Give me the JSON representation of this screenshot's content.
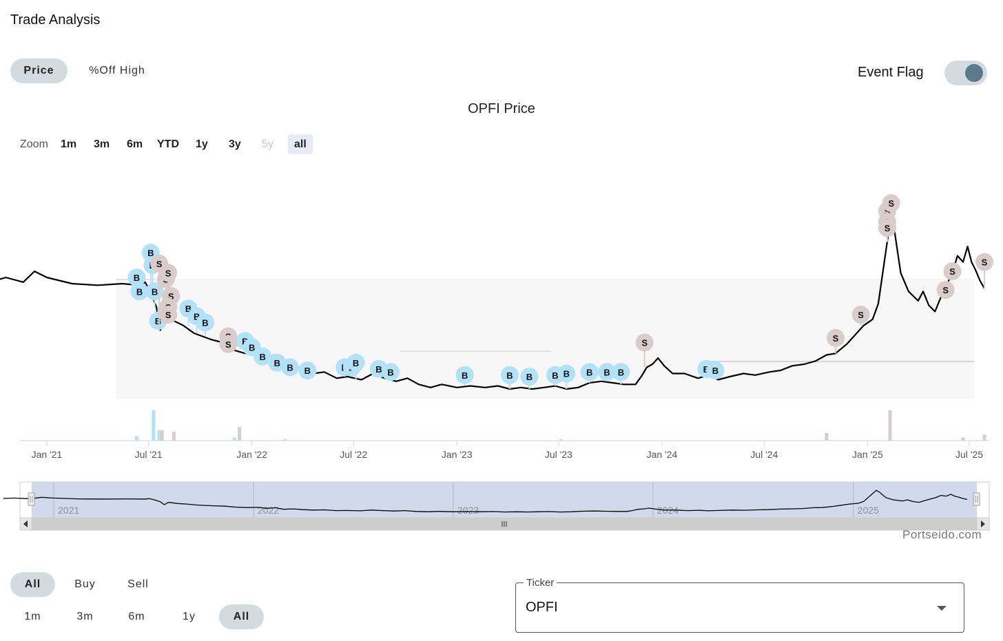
{
  "page": {
    "title": "Trade Analysis"
  },
  "view_tabs": [
    {
      "label": "Price",
      "active": true
    },
    {
      "label": "%Off High",
      "active": false
    }
  ],
  "event_flag": {
    "label": "Event Flag",
    "enabled": true
  },
  "chart_title": "OPFI Price",
  "zoom": {
    "label": "Zoom",
    "options": [
      {
        "label": "1m",
        "enabled": true,
        "selected": false
      },
      {
        "label": "3m",
        "enabled": true,
        "selected": false
      },
      {
        "label": "6m",
        "enabled": true,
        "selected": false
      },
      {
        "label": "YTD",
        "enabled": true,
        "selected": false
      },
      {
        "label": "1y",
        "enabled": true,
        "selected": false
      },
      {
        "label": "3y",
        "enabled": true,
        "selected": false
      },
      {
        "label": "5y",
        "enabled": false,
        "selected": false
      },
      {
        "label": "all",
        "enabled": true,
        "selected": true
      }
    ]
  },
  "colors": {
    "price_line": "#000000",
    "buy_flag": "#b3e1f7",
    "sell_flag": "#d9ccca",
    "navigator_fill": "#ccd6eb",
    "axis": "#ccd6eb"
  },
  "chart_data": {
    "type": "line",
    "x_axis_labels": [
      "Jan '21",
      "Jul '21",
      "Jan '22",
      "Jul '22",
      "Jan '23",
      "Jul '23",
      "Jan '24",
      "Jul '24",
      "Jan '25",
      "Jul '25"
    ],
    "price_series": [
      [
        "2020-10-01",
        0.5
      ],
      [
        "2020-10-20",
        0.52
      ],
      [
        "2020-11-20",
        0.49
      ],
      [
        "2020-12-10",
        0.56
      ],
      [
        "2021-01-01",
        0.52
      ],
      [
        "2021-02-15",
        0.48
      ],
      [
        "2021-04-01",
        0.47
      ],
      [
        "2021-05-15",
        0.48
      ],
      [
        "2021-06-15",
        0.47
      ],
      [
        "2021-06-25",
        0.49
      ],
      [
        "2021-07-05",
        0.42
      ],
      [
        "2021-07-15",
        0.33
      ],
      [
        "2021-07-22",
        0.18
      ],
      [
        "2021-07-30",
        0.3
      ],
      [
        "2021-08-15",
        0.24
      ],
      [
        "2021-09-01",
        0.21
      ],
      [
        "2021-09-20",
        0.16
      ],
      [
        "2021-10-05",
        0.14
      ],
      [
        "2021-10-20",
        0.12
      ],
      [
        "2021-11-10",
        0.1
      ],
      [
        "2021-12-01",
        0.05
      ],
      [
        "2021-12-20",
        0.03
      ],
      [
        "2022-01-10",
        0.04
      ],
      [
        "2022-01-25",
        -0.01
      ],
      [
        "2022-02-10",
        0.02
      ],
      [
        "2022-02-25",
        -0.06
      ],
      [
        "2022-03-15",
        -0.04
      ],
      [
        "2022-04-01",
        -0.08
      ],
      [
        "2022-04-20",
        -0.1
      ],
      [
        "2022-05-10",
        -0.09
      ],
      [
        "2022-06-01",
        -0.13
      ],
      [
        "2022-06-20",
        -0.12
      ],
      [
        "2022-07-15",
        -0.14
      ],
      [
        "2022-08-05",
        -0.1
      ],
      [
        "2022-08-25",
        -0.13
      ],
      [
        "2022-09-15",
        -0.15
      ],
      [
        "2022-10-05",
        -0.13
      ],
      [
        "2022-10-25",
        -0.17
      ],
      [
        "2022-11-15",
        -0.19
      ],
      [
        "2022-12-05",
        -0.17
      ],
      [
        "2023-01-01",
        -0.19
      ],
      [
        "2023-01-25",
        -0.18
      ],
      [
        "2023-02-20",
        -0.19
      ],
      [
        "2023-03-15",
        -0.18
      ],
      [
        "2023-04-05",
        -0.2
      ],
      [
        "2023-04-25",
        -0.19
      ],
      [
        "2023-05-15",
        -0.2
      ],
      [
        "2023-06-05",
        -0.19
      ],
      [
        "2023-06-25",
        -0.18
      ],
      [
        "2023-07-15",
        -0.2
      ],
      [
        "2023-08-05",
        -0.19
      ],
      [
        "2023-08-25",
        -0.16
      ],
      [
        "2023-09-15",
        -0.15
      ],
      [
        "2023-10-05",
        -0.16
      ],
      [
        "2023-10-25",
        -0.17
      ],
      [
        "2023-11-15",
        -0.17
      ],
      [
        "2023-11-25",
        -0.12
      ],
      [
        "2023-12-05",
        -0.06
      ],
      [
        "2023-12-15",
        -0.04
      ],
      [
        "2023-12-25",
        0.0
      ],
      [
        "2024-01-05",
        -0.05
      ],
      [
        "2024-01-20",
        -0.1
      ],
      [
        "2024-02-10",
        -0.1
      ],
      [
        "2024-03-05",
        -0.13
      ],
      [
        "2024-03-25",
        -0.11
      ],
      [
        "2024-04-10",
        -0.14
      ],
      [
        "2024-05-01",
        -0.12
      ],
      [
        "2024-05-25",
        -0.1
      ],
      [
        "2024-06-15",
        -0.11
      ],
      [
        "2024-07-10",
        -0.09
      ],
      [
        "2024-07-30",
        -0.08
      ],
      [
        "2024-08-20",
        -0.05
      ],
      [
        "2024-09-10",
        -0.04
      ],
      [
        "2024-09-30",
        -0.02
      ],
      [
        "2024-10-20",
        0.02
      ],
      [
        "2024-11-05",
        0.03
      ],
      [
        "2024-11-25",
        0.09
      ],
      [
        "2024-12-10",
        0.15
      ],
      [
        "2024-12-25",
        0.21
      ],
      [
        "2025-01-10",
        0.25
      ],
      [
        "2025-01-20",
        0.35
      ],
      [
        "2025-01-28",
        0.55
      ],
      [
        "2025-02-05",
        0.75
      ],
      [
        "2025-02-12",
        0.92
      ],
      [
        "2025-02-18",
        0.82
      ],
      [
        "2025-03-01",
        0.55
      ],
      [
        "2025-03-15",
        0.43
      ],
      [
        "2025-04-01",
        0.37
      ],
      [
        "2025-04-10",
        0.43
      ],
      [
        "2025-04-20",
        0.34
      ],
      [
        "2025-05-01",
        0.3
      ],
      [
        "2025-05-10",
        0.38
      ],
      [
        "2025-05-20",
        0.46
      ],
      [
        "2025-06-01",
        0.55
      ],
      [
        "2025-06-10",
        0.66
      ],
      [
        "2025-06-20",
        0.62
      ],
      [
        "2025-06-28",
        0.72
      ],
      [
        "2025-07-05",
        0.62
      ],
      [
        "2025-07-12",
        0.57
      ],
      [
        "2025-07-20",
        0.5
      ],
      [
        "2025-07-28",
        0.45
      ]
    ],
    "flags": {
      "buy": [
        [
          "2021-06-10",
          0.52
        ],
        [
          "2021-06-15",
          0.43
        ],
        [
          "2021-07-05",
          0.68
        ],
        [
          "2021-07-08",
          0.6
        ],
        [
          "2021-07-12",
          0.43
        ],
        [
          "2021-07-18",
          0.24
        ],
        [
          "2021-09-10",
          0.32
        ],
        [
          "2021-09-25",
          0.27
        ],
        [
          "2021-10-10",
          0.23
        ],
        [
          "2021-12-20",
          0.11
        ],
        [
          "2022-01-01",
          0.07
        ],
        [
          "2022-01-20",
          0.01
        ],
        [
          "2022-02-15",
          -0.03
        ],
        [
          "2022-03-10",
          -0.06
        ],
        [
          "2022-04-10",
          -0.08
        ],
        [
          "2022-06-15",
          -0.06
        ],
        [
          "2022-06-28",
          -0.06
        ],
        [
          "2022-07-05",
          -0.03
        ],
        [
          "2022-08-15",
          -0.07
        ],
        [
          "2022-09-05",
          -0.09
        ],
        [
          "2023-01-15",
          -0.11
        ],
        [
          "2023-04-05",
          -0.11
        ],
        [
          "2023-05-10",
          -0.12
        ],
        [
          "2023-06-25",
          -0.11
        ],
        [
          "2023-07-15",
          -0.1
        ],
        [
          "2023-08-25",
          -0.09
        ],
        [
          "2023-09-25",
          -0.09
        ],
        [
          "2023-10-20",
          -0.09
        ],
        [
          "2024-03-20",
          -0.07
        ],
        [
          "2024-04-05",
          -0.08
        ]
      ],
      "sell": [
        [
          "2021-07-20",
          0.61
        ],
        [
          "2021-08-01",
          0.51
        ],
        [
          "2021-08-05",
          0.55
        ],
        [
          "2021-08-10",
          0.4
        ],
        [
          "2021-08-05",
          0.33
        ],
        [
          "2021-08-05",
          0.28
        ],
        [
          "2021-11-20",
          0.14
        ],
        [
          "2021-11-20",
          0.09
        ],
        [
          "2023-12-01",
          0.1
        ],
        [
          "2024-11-05",
          0.13
        ],
        [
          "2024-12-20",
          0.28
        ],
        [
          "2025-02-05",
          0.95
        ],
        [
          "2025-02-12",
          1.0
        ],
        [
          "2025-02-05",
          0.88
        ],
        [
          "2025-02-05",
          0.84
        ],
        [
          "2025-05-20",
          0.44
        ],
        [
          "2025-06-01",
          0.56
        ],
        [
          "2025-07-28",
          0.62
        ]
      ]
    },
    "volume": {
      "buy": [
        [
          "2021-06-10",
          3
        ],
        [
          "2021-07-10",
          20
        ],
        [
          "2021-07-20",
          7
        ],
        [
          "2021-12-01",
          2
        ],
        [
          "2022-03-01",
          1
        ],
        [
          "2023-07-05",
          1
        ]
      ],
      "sell": [
        [
          "2021-07-25",
          7
        ],
        [
          "2021-08-15",
          6
        ],
        [
          "2021-12-10",
          9
        ],
        [
          "2024-10-20",
          5
        ],
        [
          "2025-02-10",
          20
        ],
        [
          "2025-06-20",
          2
        ],
        [
          "2025-07-28",
          4
        ]
      ]
    },
    "navigator_labels": [
      "2021",
      "2022",
      "2023",
      "2024",
      "2025"
    ]
  },
  "watermark": "Portseido.com",
  "side_filter": [
    {
      "label": "All",
      "active": true
    },
    {
      "label": "Buy",
      "active": false
    },
    {
      "label": "Sell",
      "active": false
    }
  ],
  "range_filter": [
    {
      "label": "1m",
      "active": false
    },
    {
      "label": "3m",
      "active": false
    },
    {
      "label": "6m",
      "active": false
    },
    {
      "label": "1y",
      "active": false
    },
    {
      "label": "All",
      "active": true
    }
  ],
  "ticker": {
    "legend": "Ticker",
    "value": "OPFI"
  }
}
